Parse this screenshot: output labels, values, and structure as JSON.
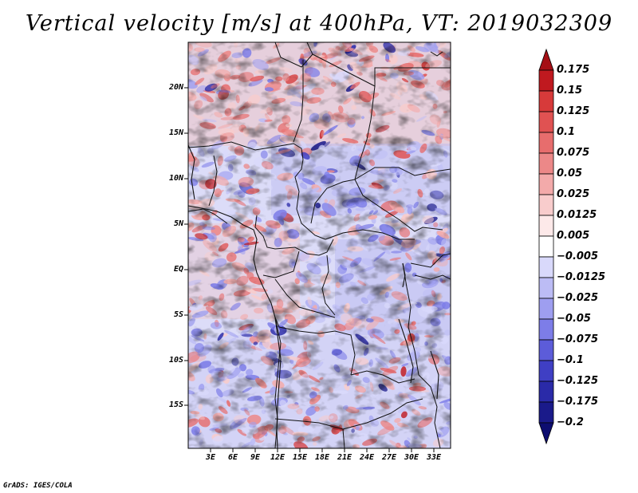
{
  "title": "Vertical velocity [m/s] at 400hPa, VT: 2019032309",
  "credit": "GrADS: IGES/COLA",
  "map": {
    "lat_labels": [
      "20N",
      "15N",
      "10N",
      "5N",
      "EQ",
      "5S",
      "10S",
      "15S"
    ],
    "lon_labels": [
      "3E",
      "6E",
      "9E",
      "12E",
      "15E",
      "18E",
      "21E",
      "24E",
      "27E",
      "30E",
      "33E"
    ]
  },
  "colorbar": {
    "labels": [
      "0.175",
      "0.15",
      "0.125",
      "0.1",
      "0.075",
      "0.05",
      "0.025",
      "0.0125",
      "0.005",
      "−0.005",
      "−0.0125",
      "−0.025",
      "−0.05",
      "−0.075",
      "−0.1",
      "−0.125",
      "−0.175",
      "−0.2"
    ],
    "colors": [
      "#a50f15",
      "#c0191f",
      "#d73a3a",
      "#e05252",
      "#e76d6d",
      "#ec8888",
      "#f3aaaa",
      "#f8cccc",
      "#fde9e9",
      "#ffffff",
      "#d9d9fb",
      "#bcbcf5",
      "#9e9ef0",
      "#7d7de8",
      "#5c5cd9",
      "#3f3fc4",
      "#2a2aa8",
      "#1a1a8a",
      "#0d0d70"
    ]
  }
}
